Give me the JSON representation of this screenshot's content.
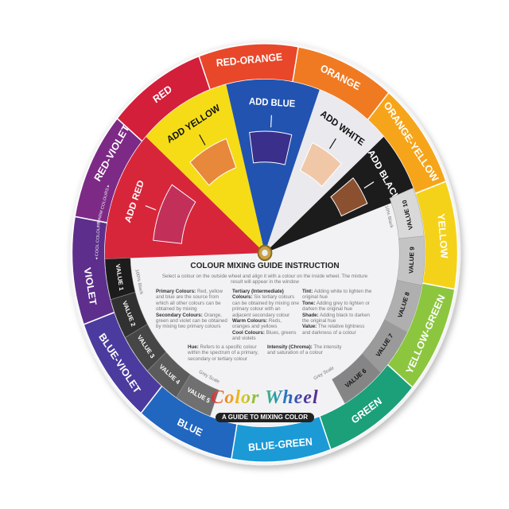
{
  "outer_ring": [
    {
      "label": "RED-ORANGE",
      "color": "#e8472a"
    },
    {
      "label": "ORANGE",
      "color": "#f07a22"
    },
    {
      "label": "ORANGE-YELLOW",
      "color": "#f6a51b"
    },
    {
      "label": "YELLOW",
      "color": "#f5d21a"
    },
    {
      "label": "YELLOW-GREEN",
      "color": "#8cc63f"
    },
    {
      "label": "GREEN",
      "color": "#1ba07a"
    },
    {
      "label": "BLUE-GREEN",
      "color": "#1b9ad6"
    },
    {
      "label": "BLUE",
      "color": "#2167c0"
    },
    {
      "label": "BLUE-VIOLET",
      "color": "#4b3b9e"
    },
    {
      "label": "VIOLET",
      "color": "#5d2e8c"
    },
    {
      "label": "RED-VIOLET",
      "color": "#7d2a86"
    },
    {
      "label": "RED",
      "color": "#d31f3a"
    }
  ],
  "ring_notes": {
    "warm": "WARM COLOURS ▸",
    "cool": "◂ COOL COLOURS"
  },
  "inner_wedges": [
    {
      "label": "ADD RED",
      "color": "#d7263a",
      "window": "#c2305a",
      "text": "#ffffff"
    },
    {
      "label": "ADD YELLOW",
      "color": "#f5dc16",
      "window": "#e8883a",
      "text": "#111111"
    },
    {
      "label": "ADD BLUE",
      "color": "#2253b0",
      "window": "#3a2f8a",
      "text": "#ffffff"
    },
    {
      "label": "ADD WHITE",
      "color": "#e9e9ee",
      "window": "#f0c8a8",
      "text": "#111111"
    },
    {
      "label": "ADD BLACK",
      "color": "#1c1c1c",
      "window": "#8a5030",
      "text": "#ffffff"
    }
  ],
  "grey_scale": {
    "values": [
      "VALUE 1",
      "VALUE 2",
      "VALUE 3",
      "VALUE 4",
      "VALUE 5",
      "VALUE 6",
      "VALUE 7",
      "VALUE 8",
      "VALUE 9",
      "VALUE 10"
    ],
    "label": "Grey Scale",
    "black_note": "100% Black",
    "light_note": "10% Black"
  },
  "guide": {
    "title": "COLOUR MIXING GUIDE INSTRUCTION",
    "intro": "Select a colour on the outside wheel and align it with a colour on the inside wheel. The mixture result will appear in the window",
    "primary_h": "Primary Colours:",
    "primary": "Red, yellow and blue are the source from which all other colours can be obtained by mixing",
    "secondary_h": "Secondary Colours:",
    "secondary": "Orange, green and violet can be obtained by mixing two primary colours",
    "tertiary_h": "Tertiary (Intermediate) Colours:",
    "tertiary": "Six tertiary colours can be obtained by mixing one primary colour with an adjacent secondary colour",
    "warm_h": "Warm Colours:",
    "warm": "Reds, oranges and yellows",
    "cool_h": "Cool Colours:",
    "cool": "Blues, greens and violets",
    "hue_h": "Hue:",
    "hue": "Refers to a specific colour within the spectrum of a primary, secondary or tertiary colour",
    "tint_h": "Tint:",
    "tint": "Adding white to lighten the original hue",
    "tone_h": "Tone:",
    "tone": "Adding grey to lighten or darken the original hue",
    "shade_h": "Shade:",
    "shade": "Adding black to darken the original hue",
    "value_h": "Value:",
    "value": "The relative lightness and darkness of a colour",
    "intensity_h": "Intensity (Chroma):",
    "intensity": "The intensity and saturation of a colour"
  },
  "logo": {
    "name": "Color Wheel",
    "tagline": "A GUIDE TO MIXING COLOR"
  }
}
